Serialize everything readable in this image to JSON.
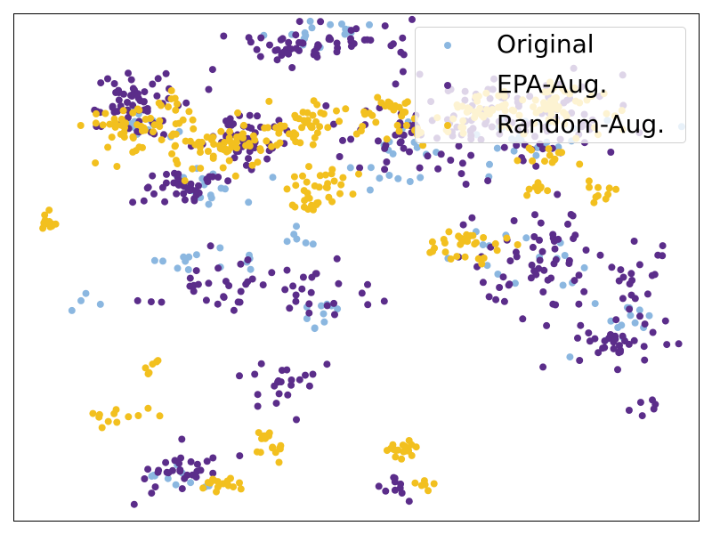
{
  "chart_data": {
    "type": "scatter",
    "title": "",
    "xlabel": "",
    "ylabel": "",
    "xlim": [
      0,
      100
    ],
    "ylim": [
      0,
      100
    ],
    "axes_visible": false,
    "grid": false,
    "legend": {
      "placement": "top-right",
      "entries": [
        {
          "name": "Original",
          "color": "#8bb7e0"
        },
        {
          "name": "EPA-Aug.",
          "color": "#5b2d8a"
        },
        {
          "name": "Random-Aug.",
          "color": "#f2c01f"
        }
      ]
    },
    "series": [
      {
        "name": "Original",
        "color": "#8bb7e0",
        "clusters": [
          {
            "cx": 29,
            "cy": 49,
            "rx": 9,
            "ry": 3,
            "n": 14
          },
          {
            "cx": 44,
            "cy": 59,
            "rx": 3,
            "ry": 5,
            "n": 10
          },
          {
            "cx": 42,
            "cy": 44,
            "rx": 3,
            "ry": 2,
            "n": 6
          },
          {
            "cx": 19,
            "cy": 22,
            "rx": 5,
            "ry": 4,
            "n": 14
          },
          {
            "cx": 29,
            "cy": 33,
            "rx": 6,
            "ry": 4,
            "n": 16
          },
          {
            "cx": 45,
            "cy": 4,
            "rx": 10,
            "ry": 3,
            "n": 18
          },
          {
            "cx": 57,
            "cy": 28,
            "rx": 10,
            "ry": 6,
            "n": 20
          },
          {
            "cx": 75,
            "cy": 25,
            "rx": 10,
            "ry": 5,
            "n": 24
          },
          {
            "cx": 75,
            "cy": 50,
            "rx": 10,
            "ry": 7,
            "n": 16
          },
          {
            "cx": 88,
            "cy": 62,
            "rx": 7,
            "ry": 7,
            "n": 14
          },
          {
            "cx": 24,
            "cy": 91,
            "rx": 6,
            "ry": 3,
            "n": 10
          },
          {
            "cx": 9,
            "cy": 56,
            "rx": 3,
            "ry": 3,
            "n": 4
          }
        ]
      },
      {
        "name": "EPA-Aug.",
        "color": "#5b2d8a",
        "clusters": [
          {
            "cx": 24,
            "cy": 90,
            "rx": 6,
            "ry": 4,
            "n": 30
          },
          {
            "cx": 30,
            "cy": 53,
            "rx": 10,
            "ry": 5,
            "n": 30
          },
          {
            "cx": 44,
            "cy": 55,
            "rx": 5,
            "ry": 6,
            "n": 22
          },
          {
            "cx": 40,
            "cy": 72,
            "rx": 7,
            "ry": 6,
            "n": 22
          },
          {
            "cx": 18,
            "cy": 18,
            "rx": 6,
            "ry": 6,
            "n": 60
          },
          {
            "cx": 33,
            "cy": 24,
            "rx": 6,
            "ry": 5,
            "n": 50
          },
          {
            "cx": 24,
            "cy": 34,
            "rx": 5,
            "ry": 3,
            "n": 40
          },
          {
            "cx": 44,
            "cy": 6,
            "rx": 12,
            "ry": 4,
            "n": 60
          },
          {
            "cx": 59,
            "cy": 23,
            "rx": 12,
            "ry": 8,
            "n": 70
          },
          {
            "cx": 77,
            "cy": 20,
            "rx": 12,
            "ry": 8,
            "n": 70
          },
          {
            "cx": 77,
            "cy": 48,
            "rx": 12,
            "ry": 9,
            "n": 60
          },
          {
            "cx": 88,
            "cy": 64,
            "rx": 8,
            "ry": 7,
            "n": 40
          },
          {
            "cx": 55,
            "cy": 94,
            "rx": 3,
            "ry": 3,
            "n": 10
          },
          {
            "cx": 92,
            "cy": 78,
            "rx": 2,
            "ry": 2,
            "n": 6
          },
          {
            "cx": 90,
            "cy": 52,
            "rx": 4,
            "ry": 5,
            "n": 14
          }
        ]
      },
      {
        "name": "Random-Aug.",
        "color": "#f2c01f",
        "clusters": [
          {
            "cx": 30,
            "cy": 93,
            "rx": 4,
            "ry": 3,
            "n": 16
          },
          {
            "cx": 16,
            "cy": 79,
            "rx": 6,
            "ry": 2,
            "n": 12
          },
          {
            "cx": 19,
            "cy": 22,
            "rx": 8,
            "ry": 5,
            "n": 60
          },
          {
            "cx": 31,
            "cy": 26,
            "rx": 7,
            "ry": 5,
            "n": 60
          },
          {
            "cx": 42,
            "cy": 22,
            "rx": 5,
            "ry": 4,
            "n": 40
          },
          {
            "cx": 45,
            "cy": 34,
            "rx": 5,
            "ry": 4,
            "n": 30
          },
          {
            "cx": 56,
            "cy": 20,
            "rx": 8,
            "ry": 4,
            "n": 40
          },
          {
            "cx": 68,
            "cy": 20,
            "rx": 6,
            "ry": 4,
            "n": 30
          },
          {
            "cx": 79,
            "cy": 18,
            "rx": 8,
            "ry": 5,
            "n": 60
          },
          {
            "cx": 66,
            "cy": 46,
            "rx": 6,
            "ry": 4,
            "n": 30
          },
          {
            "cx": 36,
            "cy": 84,
            "rx": 2,
            "ry": 2,
            "n": 10
          },
          {
            "cx": 57,
            "cy": 86,
            "rx": 3,
            "ry": 2,
            "n": 20
          },
          {
            "cx": 38,
            "cy": 86,
            "rx": 1.5,
            "ry": 1.5,
            "n": 8
          },
          {
            "cx": 5,
            "cy": 41,
            "rx": 1.5,
            "ry": 1.5,
            "n": 12
          },
          {
            "cx": 20,
            "cy": 70,
            "rx": 2,
            "ry": 2,
            "n": 6
          },
          {
            "cx": 77,
            "cy": 34,
            "rx": 3,
            "ry": 2,
            "n": 8
          },
          {
            "cx": 79,
            "cy": 28,
            "rx": 4,
            "ry": 3,
            "n": 14
          },
          {
            "cx": 60,
            "cy": 93,
            "rx": 2,
            "ry": 2,
            "n": 6
          },
          {
            "cx": 44,
            "cy": 37,
            "rx": 1.5,
            "ry": 1.5,
            "n": 6
          },
          {
            "cx": 85,
            "cy": 35,
            "rx": 3,
            "ry": 2,
            "n": 10
          }
        ]
      }
    ]
  }
}
